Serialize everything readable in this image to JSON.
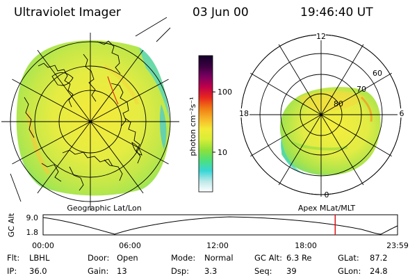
{
  "header": {
    "title": "Ultraviolet Imager",
    "date": "03 Jun 00",
    "time": "19:46:40 UT"
  },
  "colorbar": {
    "label": "photon cm⁻²s⁻¹",
    "ticks": [
      {
        "text": "100",
        "value": 100
      },
      {
        "text": "10",
        "value": 10
      }
    ],
    "stops": [
      "#ffffff",
      "#bde8e8",
      "#38d6d6",
      "#4ee07a",
      "#8fe03a",
      "#d8ee38",
      "#f3ea36",
      "#f7b428",
      "#f07a14",
      "#e8281e",
      "#c0004a",
      "#7a0060",
      "#3a0040",
      "#14002a"
    ]
  },
  "left_map": {
    "caption": "Geographic Lat/Lon"
  },
  "right_map": {
    "caption": "Apex MLat/MLT",
    "mlt_labels": {
      "top": "12",
      "left": "18",
      "right": "6",
      "bottom": "0"
    },
    "lat_labels": [
      "60",
      "70",
      "80"
    ]
  },
  "timeline": {
    "ylabel": "GC Alt",
    "yticks": [
      "9.0",
      "1.8"
    ],
    "xticks": [
      "00:00",
      "06:00",
      "12:00",
      "18:00",
      "23:59"
    ],
    "marker_hours": 19.778,
    "marker_color": "#e01010"
  },
  "status": {
    "row1": [
      {
        "label": "Flt:",
        "value": "LBHL"
      },
      {
        "label": "Door:",
        "value": "Open"
      },
      {
        "label": "Mode:",
        "value": "Normal"
      },
      {
        "label": "GC Alt:",
        "value": "6.3 Re"
      },
      {
        "label": "GLat:",
        "value": "87.2"
      }
    ],
    "row2": [
      {
        "label": "IP:",
        "value": "36.0"
      },
      {
        "label": "Gain:",
        "value": "13"
      },
      {
        "label": "Dsp:",
        "value": "3.3"
      },
      {
        "label": "Seq:",
        "value": "39"
      },
      {
        "label": "GLon:",
        "value": "24.8"
      }
    ]
  }
}
